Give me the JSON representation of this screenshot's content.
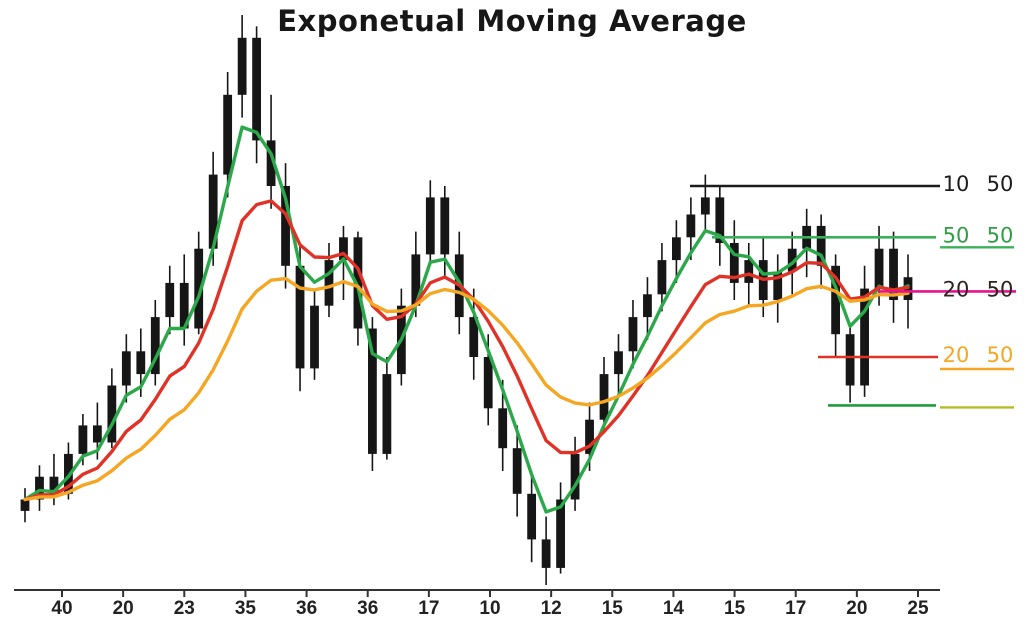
{
  "title": "Exponetual Moving Average",
  "chart_data": {
    "type": "candlestick",
    "title": "Exponetual Moving Average",
    "xlabel": "",
    "ylabel": "",
    "ylim": [
      0,
      100
    ],
    "grid": false,
    "legend_position": "right",
    "axis_color": "#333333",
    "candle_color": "#161616",
    "x_tick_labels": [
      "40",
      "20",
      "23",
      "35",
      "36",
      "36",
      "17",
      "10",
      "12",
      "15",
      "14",
      "15",
      "17",
      "20",
      "25"
    ],
    "candles": [
      [
        13,
        17,
        11,
        15
      ],
      [
        15,
        21,
        13,
        19
      ],
      [
        19,
        23,
        14,
        16
      ],
      [
        16,
        25,
        15,
        23
      ],
      [
        23,
        30,
        21,
        28
      ],
      [
        28,
        32,
        22,
        25
      ],
      [
        25,
        38,
        24,
        35
      ],
      [
        35,
        44,
        32,
        41
      ],
      [
        41,
        45,
        33,
        37
      ],
      [
        37,
        50,
        35,
        47
      ],
      [
        47,
        56,
        44,
        53
      ],
      [
        53,
        58,
        42,
        45
      ],
      [
        45,
        62,
        44,
        59
      ],
      [
        59,
        76,
        56,
        72
      ],
      [
        72,
        90,
        68,
        86
      ],
      [
        86,
        100,
        82,
        96
      ],
      [
        96,
        98,
        74,
        78
      ],
      [
        78,
        86,
        66,
        70
      ],
      [
        70,
        74,
        52,
        56
      ],
      [
        56,
        60,
        34,
        38
      ],
      [
        38,
        52,
        36,
        49
      ],
      [
        49,
        60,
        47,
        57
      ],
      [
        57,
        63,
        50,
        61
      ],
      [
        61,
        62,
        42,
        45
      ],
      [
        45,
        47,
        20,
        23
      ],
      [
        23,
        40,
        22,
        37
      ],
      [
        37,
        52,
        35,
        49
      ],
      [
        49,
        62,
        47,
        58
      ],
      [
        58,
        71,
        56,
        68
      ],
      [
        68,
        70,
        54,
        58
      ],
      [
        58,
        62,
        44,
        47
      ],
      [
        47,
        52,
        36,
        40
      ],
      [
        40,
        44,
        28,
        31
      ],
      [
        31,
        36,
        20,
        24
      ],
      [
        24,
        28,
        12,
        16
      ],
      [
        16,
        20,
        4,
        8
      ],
      [
        8,
        12,
        0,
        3
      ],
      [
        3,
        18,
        2,
        15
      ],
      [
        15,
        26,
        13,
        23
      ],
      [
        23,
        32,
        20,
        29
      ],
      [
        29,
        40,
        27,
        37
      ],
      [
        37,
        44,
        33,
        41
      ],
      [
        41,
        50,
        38,
        47
      ],
      [
        47,
        54,
        43,
        51
      ],
      [
        51,
        60,
        48,
        57
      ],
      [
        57,
        64,
        53,
        61
      ],
      [
        61,
        68,
        57,
        65
      ],
      [
        65,
        72,
        62,
        68
      ],
      [
        68,
        70,
        56,
        60
      ],
      [
        60,
        64,
        50,
        53
      ],
      [
        53,
        60,
        49,
        57
      ],
      [
        57,
        61,
        47,
        50
      ],
      [
        50,
        58,
        46,
        55
      ],
      [
        55,
        62,
        51,
        59
      ],
      [
        59,
        66,
        54,
        63
      ],
      [
        63,
        65,
        52,
        56
      ],
      [
        56,
        58,
        40,
        44
      ],
      [
        44,
        46,
        32,
        35
      ],
      [
        35,
        56,
        33,
        52
      ],
      [
        52,
        63,
        49,
        59
      ],
      [
        59,
        62,
        46,
        50
      ],
      [
        50,
        58,
        45,
        54
      ]
    ],
    "ema_series": [
      {
        "name": "ema-fast",
        "period": 4,
        "color": "#2aa84a"
      },
      {
        "name": "ema-medium",
        "period": 9,
        "color": "#e03226"
      },
      {
        "name": "ema-slow",
        "period": 18,
        "color": "#f5a623"
      }
    ],
    "legend": [
      {
        "name": "level-black",
        "left": "10",
        "right": "50",
        "text_color": "#1c1c1c",
        "line_color": "#1c1c1c",
        "price": 70,
        "x0": 690,
        "x1": 940,
        "underline_color": null,
        "underline_dy": 12
      },
      {
        "name": "level-green",
        "left": "50",
        "right": "50",
        "text_color": "#2f9e44",
        "line_color": "#3bb05a",
        "price": 61,
        "x0": 712,
        "x1": 936,
        "underline_color": "#3bb05a",
        "underline_dy": 10
      },
      {
        "name": "level-magenta",
        "left": "20",
        "right": "50",
        "text_color": "#33211f",
        "line_color": "#e5148e",
        "price": 51.5,
        "x0": 878,
        "x1": 1016,
        "underline_color": null,
        "underline_dy": 12
      },
      {
        "name": "level-red",
        "left": "20",
        "right": "50",
        "text_color": "#f5a623",
        "line_color": "#e03226",
        "price": 40,
        "x0": 818,
        "x1": 938,
        "underline_color": "#f5a623",
        "underline_dy": 12
      },
      {
        "name": "level-darkgreen",
        "left": "",
        "right": "",
        "text_color": null,
        "line_color": "#1f9d3a",
        "price": 31.5,
        "x0": 828,
        "x1": 936,
        "underline_color": "#b3bd22",
        "underline_dy": 2
      }
    ]
  }
}
